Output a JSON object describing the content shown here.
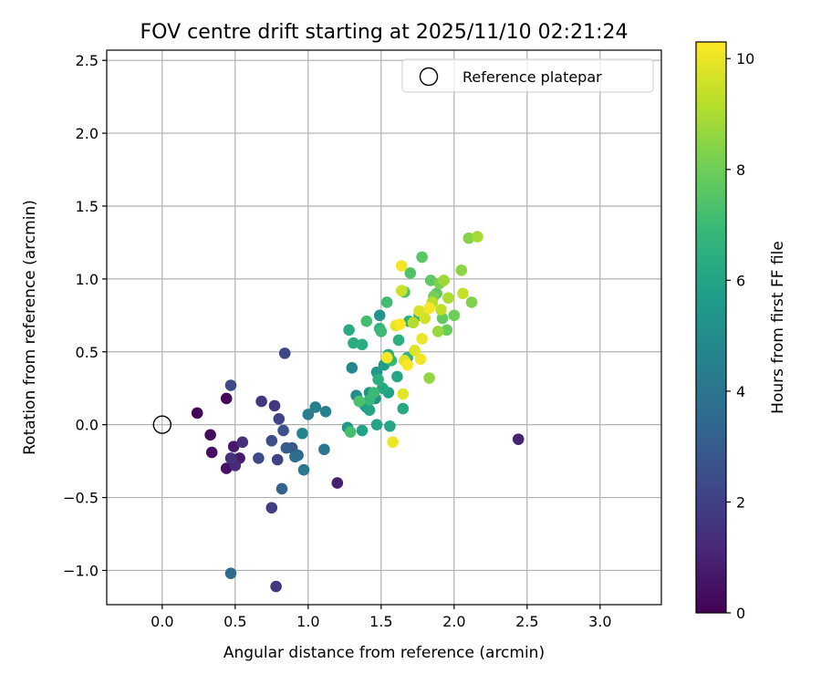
{
  "chart_data": {
    "type": "scatter",
    "title": "FOV centre drift starting at 2025/11/10 02:21:24",
    "xlabel": "Angular distance from reference (arcmin)",
    "ylabel": "Rotation from reference (arcmin)",
    "xlim": [
      -0.38,
      3.42
    ],
    "ylim": [
      -1.235,
      2.57
    ],
    "x_ticks": [
      0.0,
      0.5,
      1.0,
      1.5,
      2.0,
      2.5,
      3.0
    ],
    "x_tick_labels": [
      "0.0",
      "0.5",
      "1.0",
      "1.5",
      "2.0",
      "2.5",
      "3.0"
    ],
    "y_ticks": [
      -1.0,
      -0.5,
      0.0,
      0.5,
      1.0,
      1.5,
      2.0,
      2.5
    ],
    "y_tick_labels": [
      "−1.0",
      "−0.5",
      "0.0",
      "0.5",
      "1.0",
      "1.5",
      "2.0",
      "2.5"
    ],
    "grid": true,
    "legend": {
      "placement": "top-right",
      "entries": [
        {
          "label": "Reference platepar",
          "marker": "open-circle"
        }
      ]
    },
    "reference_point": {
      "x": 0.0,
      "y": 0.0
    },
    "colorbar": {
      "label": "Hours from first FF file",
      "range": [
        0,
        10.3
      ],
      "ticks": [
        0,
        2,
        4,
        6,
        8,
        10
      ],
      "tick_labels": [
        "0",
        "2",
        "4",
        "6",
        "8",
        "10"
      ],
      "colormap": "viridis"
    },
    "colormap_stops": [
      "#440154",
      "#482878",
      "#3e4989",
      "#31688e",
      "#26828e",
      "#1f9e89",
      "#35b779",
      "#6ece58",
      "#b5de2b",
      "#fde725"
    ],
    "series": [
      {
        "points": [
          [
            0.24,
            0.08,
            0.1
          ],
          [
            0.44,
            0.18,
            0.2
          ],
          [
            0.33,
            -0.07,
            0.3
          ],
          [
            0.34,
            -0.19,
            0.4
          ],
          [
            0.44,
            -0.3,
            0.5
          ],
          [
            0.49,
            -0.15,
            0.7
          ],
          [
            0.53,
            -0.23,
            0.8
          ],
          [
            1.2,
            -0.4,
            0.9
          ],
          [
            2.44,
            -0.1,
            1.0
          ],
          [
            0.5,
            -0.28,
            1.2
          ],
          [
            0.55,
            -0.12,
            1.4
          ],
          [
            0.47,
            -0.23,
            1.5
          ],
          [
            0.68,
            0.16,
            1.6
          ],
          [
            0.77,
            0.13,
            1.7
          ],
          [
            0.78,
            -1.11,
            1.7
          ],
          [
            0.75,
            -0.57,
            1.9
          ],
          [
            0.79,
            -0.24,
            2.0
          ],
          [
            0.8,
            0.04,
            2.1
          ],
          [
            0.84,
            0.49,
            2.2
          ],
          [
            0.66,
            -0.23,
            2.3
          ],
          [
            0.47,
            0.27,
            2.4
          ],
          [
            0.75,
            -0.11,
            2.5
          ],
          [
            0.83,
            -0.04,
            2.6
          ],
          [
            0.89,
            -0.16,
            2.8
          ],
          [
            0.85,
            -0.16,
            3.0
          ],
          [
            0.82,
            -0.44,
            3.2
          ],
          [
            0.93,
            -0.21,
            3.5
          ],
          [
            0.47,
            -1.02,
            3.6
          ],
          [
            0.91,
            -0.22,
            3.8
          ],
          [
            1.11,
            -0.17,
            4.0
          ],
          [
            0.97,
            -0.31,
            4.2
          ],
          [
            1.0,
            0.07,
            4.4
          ],
          [
            1.05,
            0.12,
            4.5
          ],
          [
            1.12,
            0.09,
            4.6
          ],
          [
            0.96,
            -0.06,
            4.7
          ],
          [
            1.3,
            0.39,
            4.8
          ],
          [
            1.33,
            0.2,
            5.0
          ],
          [
            1.4,
            0.12,
            5.1
          ],
          [
            1.46,
            0.18,
            5.2
          ],
          [
            1.49,
            0.75,
            5.3
          ],
          [
            1.42,
            0.22,
            5.4
          ],
          [
            1.47,
            0.36,
            5.5
          ],
          [
            1.39,
            0.13,
            5.6
          ],
          [
            1.27,
            -0.02,
            5.6
          ],
          [
            1.52,
            0.41,
            5.7
          ],
          [
            1.55,
            0.22,
            5.8
          ],
          [
            1.37,
            -0.04,
            5.9
          ],
          [
            1.42,
            0.1,
            6.0
          ],
          [
            1.47,
            0.0,
            6.0
          ],
          [
            1.56,
            -0.01,
            6.1
          ],
          [
            1.61,
            0.33,
            6.1
          ],
          [
            1.51,
            0.25,
            6.2
          ],
          [
            1.65,
            0.11,
            6.2
          ],
          [
            1.28,
            0.65,
            6.3
          ],
          [
            1.31,
            0.56,
            6.3
          ],
          [
            1.37,
            0.55,
            6.4
          ],
          [
            1.55,
            0.48,
            6.4
          ],
          [
            1.48,
            0.31,
            6.5
          ],
          [
            1.62,
            0.58,
            6.5
          ],
          [
            1.68,
            0.46,
            6.6
          ],
          [
            1.69,
            0.71,
            6.6
          ],
          [
            1.76,
            0.75,
            6.7
          ],
          [
            1.49,
            0.66,
            6.7
          ],
          [
            1.57,
            0.44,
            6.8
          ],
          [
            1.42,
            0.17,
            6.9
          ],
          [
            1.45,
            0.22,
            7.0
          ],
          [
            1.5,
            0.64,
            7.0
          ],
          [
            1.54,
            0.84,
            7.1
          ],
          [
            1.4,
            0.71,
            7.2
          ],
          [
            1.29,
            -0.05,
            7.2
          ],
          [
            1.35,
            0.16,
            7.3
          ],
          [
            1.7,
            1.04,
            7.4
          ],
          [
            1.66,
            0.91,
            7.5
          ],
          [
            1.78,
            1.15,
            7.6
          ],
          [
            1.84,
            0.99,
            7.7
          ],
          [
            1.88,
            0.9,
            7.7
          ],
          [
            1.92,
            0.73,
            7.8
          ],
          [
            1.95,
            0.65,
            7.9
          ],
          [
            2.0,
            0.75,
            8.0
          ],
          [
            1.86,
            0.88,
            8.1
          ],
          [
            1.9,
            0.97,
            8.2
          ],
          [
            2.12,
            0.84,
            8.3
          ],
          [
            2.1,
            1.28,
            8.4
          ],
          [
            2.05,
            1.06,
            8.5
          ],
          [
            1.83,
            0.32,
            8.6
          ],
          [
            1.89,
            0.64,
            8.7
          ],
          [
            1.93,
            0.99,
            8.8
          ],
          [
            2.16,
            1.29,
            8.9
          ],
          [
            1.96,
            0.87,
            9.0
          ],
          [
            1.72,
            0.7,
            9.1
          ],
          [
            1.85,
            0.84,
            9.2
          ],
          [
            1.91,
            0.79,
            9.3
          ],
          [
            2.06,
            0.9,
            9.4
          ],
          [
            1.64,
            0.92,
            9.5
          ],
          [
            1.8,
            0.73,
            9.6
          ],
          [
            1.76,
            0.78,
            9.7
          ],
          [
            1.73,
            0.51,
            9.8
          ],
          [
            1.66,
            0.44,
            9.8
          ],
          [
            1.6,
            0.68,
            9.9
          ],
          [
            1.65,
            0.21,
            9.9
          ],
          [
            1.58,
            -0.12,
            10.0
          ],
          [
            1.78,
            0.59,
            10.0
          ],
          [
            1.64,
            1.09,
            10.1
          ],
          [
            1.77,
            0.45,
            10.1
          ],
          [
            1.83,
            0.8,
            10.2
          ],
          [
            1.54,
            0.46,
            10.2
          ],
          [
            1.68,
            0.41,
            10.3
          ],
          [
            1.63,
            0.69,
            10.3
          ]
        ],
        "point_fields": [
          "angular_distance_arcmin",
          "rotation_arcmin",
          "hours_from_first_ff_file"
        ]
      }
    ]
  }
}
